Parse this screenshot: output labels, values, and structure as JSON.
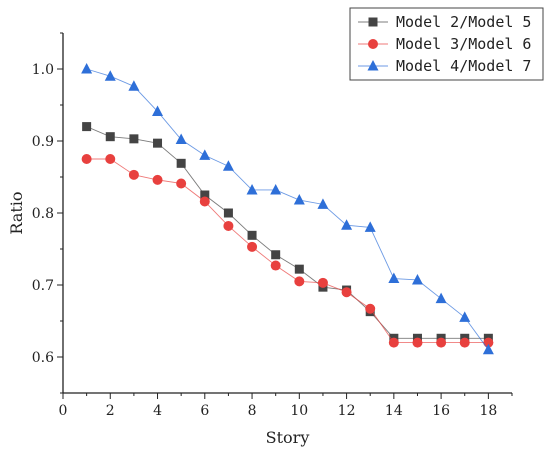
{
  "chart_data": {
    "type": "line",
    "title": "",
    "xlabel": "Story",
    "ylabel": "Ratio",
    "xlim": [
      0,
      19
    ],
    "ylim": [
      0.55,
      1.05
    ],
    "xticks": [
      0,
      2,
      4,
      6,
      8,
      10,
      12,
      14,
      16,
      18
    ],
    "yticks": [
      0.6,
      0.7,
      0.8,
      0.9,
      1.0
    ],
    "ytick_labels": [
      "0.6",
      "0.7",
      "0.8",
      "0.9",
      "1.0"
    ],
    "grid": false,
    "legend_position": "top-right",
    "x": [
      1,
      2,
      3,
      4,
      5,
      6,
      7,
      8,
      9,
      10,
      11,
      12,
      13,
      14,
      15,
      16,
      17,
      18
    ],
    "series": [
      {
        "name": "Model 2/Model 5",
        "color": "#444444",
        "marker": "square",
        "values": [
          0.92,
          0.906,
          0.903,
          0.897,
          0.869,
          0.825,
          0.8,
          0.769,
          0.742,
          0.722,
          0.697,
          0.693,
          0.663,
          0.626,
          0.626,
          0.626,
          0.626,
          0.626
        ]
      },
      {
        "name": "Model 3/Model 6",
        "color": "#e8403e",
        "marker": "circle",
        "values": [
          0.875,
          0.875,
          0.853,
          0.846,
          0.841,
          0.816,
          0.782,
          0.753,
          0.727,
          0.705,
          0.703,
          0.69,
          0.667,
          0.62,
          0.62,
          0.62,
          0.62,
          0.62
        ]
      },
      {
        "name": "Model 4/Model 7",
        "color": "#2e6fd8",
        "marker": "triangle",
        "values": [
          1.0,
          0.99,
          0.976,
          0.941,
          0.902,
          0.88,
          0.865,
          0.832,
          0.832,
          0.818,
          0.812,
          0.783,
          0.78,
          0.709,
          0.707,
          0.681,
          0.655,
          0.61
        ]
      }
    ]
  }
}
